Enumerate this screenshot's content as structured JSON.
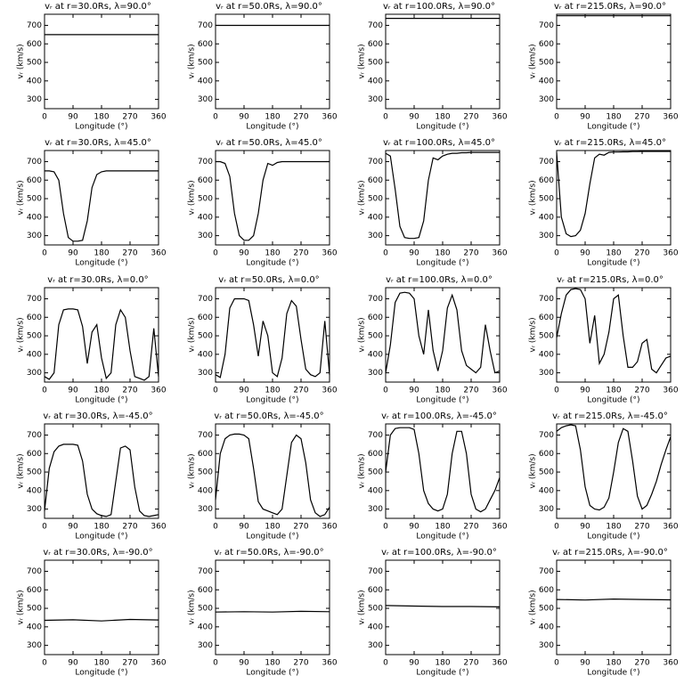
{
  "chart_data": [
    {
      "type": "line",
      "title": "vᵣ at r=30.0Rs, λ=90.0°",
      "xlabel": "Longitude (°)",
      "ylabel": "vᵣ (km/s)",
      "color": "#000000",
      "xlim": [
        0,
        360
      ],
      "ylim": [
        250,
        760
      ],
      "xticks": [
        0,
        90,
        180,
        270,
        360
      ],
      "yticks": [
        300,
        400,
        500,
        600,
        700
      ],
      "x": [
        0,
        360
      ],
      "values": [
        650,
        650
      ]
    },
    {
      "type": "line",
      "title": "vᵣ at r=50.0Rs, λ=90.0°",
      "xlabel": "Longitude (°)",
      "ylabel": "vᵣ (km/s)",
      "color": "#000000",
      "xlim": [
        0,
        360
      ],
      "ylim": [
        250,
        760
      ],
      "xticks": [
        0,
        90,
        180,
        270,
        360
      ],
      "yticks": [
        300,
        400,
        500,
        600,
        700
      ],
      "x": [
        0,
        360
      ],
      "values": [
        700,
        700
      ]
    },
    {
      "type": "line",
      "title": "vᵣ at r=100.0Rs, λ=90.0°",
      "xlabel": "Longitude (°)",
      "ylabel": "vᵣ (km/s)",
      "color": "#000000",
      "xlim": [
        0,
        360
      ],
      "ylim": [
        250,
        760
      ],
      "xticks": [
        0,
        90,
        180,
        270,
        360
      ],
      "yticks": [
        300,
        400,
        500,
        600,
        700
      ],
      "x": [
        0,
        360
      ],
      "values": [
        738,
        738
      ]
    },
    {
      "type": "line",
      "title": "vᵣ at r=215.0Rs, λ=90.0°",
      "xlabel": "Longitude (°)",
      "ylabel": "vᵣ (km/s)",
      "color": "#000000",
      "xlim": [
        0,
        360
      ],
      "ylim": [
        250,
        760
      ],
      "xticks": [
        0,
        90,
        180,
        270,
        360
      ],
      "yticks": [
        300,
        400,
        500,
        600,
        700
      ],
      "x": [
        0,
        360
      ],
      "values": [
        752,
        752
      ]
    },
    {
      "type": "line",
      "title": "vᵣ at r=30.0Rs, λ=45.0°",
      "xlabel": "Longitude (°)",
      "ylabel": "vᵣ (km/s)",
      "color": "#000000",
      "xlim": [
        0,
        360
      ],
      "ylim": [
        250,
        760
      ],
      "xticks": [
        0,
        90,
        180,
        270,
        360
      ],
      "yticks": [
        300,
        400,
        500,
        600,
        700
      ],
      "x": [
        0,
        15,
        30,
        45,
        60,
        75,
        90,
        105,
        120,
        135,
        150,
        165,
        180,
        195,
        210,
        225,
        240,
        255,
        270,
        285,
        300,
        315,
        330,
        345,
        360
      ],
      "values": [
        650,
        650,
        645,
        600,
        420,
        290,
        270,
        270,
        275,
        380,
        560,
        630,
        645,
        650,
        650,
        650,
        650,
        650,
        650,
        650,
        650,
        650,
        650,
        650,
        650
      ]
    },
    {
      "type": "line",
      "title": "vᵣ at r=50.0Rs, λ=45.0°",
      "xlabel": "Longitude (°)",
      "ylabel": "vᵣ (km/s)",
      "color": "#000000",
      "xlim": [
        0,
        360
      ],
      "ylim": [
        250,
        760
      ],
      "xticks": [
        0,
        90,
        180,
        270,
        360
      ],
      "yticks": [
        300,
        400,
        500,
        600,
        700
      ],
      "x": [
        0,
        15,
        30,
        45,
        60,
        75,
        90,
        105,
        120,
        135,
        150,
        165,
        180,
        195,
        210,
        225,
        240,
        255,
        270,
        285,
        300,
        315,
        330,
        345,
        360
      ],
      "values": [
        700,
        700,
        690,
        620,
        420,
        300,
        275,
        275,
        300,
        420,
        600,
        690,
        680,
        695,
        700,
        700,
        700,
        700,
        700,
        700,
        700,
        700,
        700,
        700,
        700
      ]
    },
    {
      "type": "line",
      "title": "vᵣ at r=100.0Rs, λ=45.0°",
      "xlabel": "Longitude (°)",
      "ylabel": "vᵣ (km/s)",
      "color": "#000000",
      "xlim": [
        0,
        360
      ],
      "ylim": [
        250,
        760
      ],
      "xticks": [
        0,
        90,
        180,
        270,
        360
      ],
      "yticks": [
        300,
        400,
        500,
        600,
        700
      ],
      "x": [
        0,
        15,
        30,
        45,
        60,
        75,
        90,
        105,
        120,
        135,
        150,
        165,
        180,
        195,
        210,
        225,
        240,
        255,
        270,
        285,
        300,
        315,
        330,
        345,
        360
      ],
      "values": [
        745,
        730,
        550,
        350,
        290,
        285,
        285,
        290,
        380,
        600,
        720,
        710,
        730,
        740,
        745,
        745,
        748,
        748,
        750,
        750,
        750,
        750,
        750,
        750,
        750
      ]
    },
    {
      "type": "line",
      "title": "vᵣ at r=215.0Rs, λ=45.0°",
      "xlabel": "Longitude (°)",
      "ylabel": "vᵣ (km/s)",
      "color": "#000000",
      "xlim": [
        0,
        360
      ],
      "ylim": [
        250,
        760
      ],
      "xticks": [
        0,
        90,
        180,
        270,
        360
      ],
      "yticks": [
        300,
        400,
        500,
        600,
        700
      ],
      "x": [
        0,
        15,
        30,
        45,
        60,
        75,
        90,
        105,
        120,
        135,
        150,
        165,
        180,
        195,
        210,
        225,
        240,
        255,
        270,
        285,
        300,
        315,
        330,
        345,
        360
      ],
      "values": [
        750,
        400,
        310,
        295,
        300,
        330,
        420,
        580,
        720,
        740,
        735,
        750,
        752,
        752,
        753,
        753,
        754,
        754,
        755,
        755,
        755,
        755,
        755,
        755,
        755
      ]
    },
    {
      "type": "line",
      "title": "vᵣ at r=30.0Rs, λ=0.0°",
      "xlabel": "Longitude (°)",
      "ylabel": "vᵣ (km/s)",
      "color": "#000000",
      "xlim": [
        0,
        360
      ],
      "ylim": [
        250,
        760
      ],
      "xticks": [
        0,
        90,
        180,
        270,
        360
      ],
      "yticks": [
        300,
        400,
        500,
        600,
        700
      ],
      "x": [
        0,
        15,
        30,
        45,
        60,
        75,
        90,
        105,
        120,
        135,
        150,
        165,
        180,
        195,
        210,
        225,
        240,
        255,
        270,
        285,
        300,
        315,
        330,
        345,
        360
      ],
      "values": [
        280,
        265,
        300,
        560,
        640,
        645,
        645,
        640,
        550,
        350,
        520,
        560,
        380,
        270,
        300,
        560,
        640,
        600,
        420,
        280,
        270,
        260,
        280,
        540,
        280
      ]
    },
    {
      "type": "line",
      "title": "vᵣ at r=50.0Rs, λ=0.0°",
      "xlabel": "Longitude (°)",
      "ylabel": "vᵣ (km/s)",
      "color": "#000000",
      "xlim": [
        0,
        360
      ],
      "ylim": [
        250,
        760
      ],
      "xticks": [
        0,
        90,
        180,
        270,
        360
      ],
      "yticks": [
        300,
        400,
        500,
        600,
        700
      ],
      "x": [
        0,
        15,
        30,
        45,
        60,
        75,
        90,
        105,
        120,
        135,
        150,
        165,
        180,
        195,
        210,
        225,
        240,
        255,
        270,
        285,
        300,
        315,
        330,
        345,
        360
      ],
      "values": [
        290,
        275,
        400,
        650,
        700,
        700,
        700,
        690,
        560,
        390,
        580,
        500,
        300,
        280,
        380,
        620,
        690,
        660,
        480,
        320,
        290,
        280,
        300,
        580,
        290
      ]
    },
    {
      "type": "line",
      "title": "vᵣ at r=100.0Rs, λ=0.0°",
      "xlabel": "Longitude (°)",
      "ylabel": "vᵣ (km/s)",
      "color": "#000000",
      "xlim": [
        0,
        360
      ],
      "ylim": [
        250,
        760
      ],
      "xticks": [
        0,
        90,
        180,
        270,
        360
      ],
      "yticks": [
        300,
        400,
        500,
        600,
        700
      ],
      "x": [
        0,
        15,
        30,
        45,
        60,
        75,
        90,
        105,
        120,
        135,
        150,
        165,
        180,
        195,
        210,
        225,
        240,
        255,
        270,
        285,
        300,
        315,
        330,
        345,
        360
      ],
      "values": [
        300,
        450,
        680,
        730,
        735,
        730,
        700,
        500,
        400,
        640,
        420,
        310,
        420,
        650,
        720,
        640,
        420,
        340,
        320,
        300,
        330,
        560,
        420,
        300,
        310
      ]
    },
    {
      "type": "line",
      "title": "vᵣ at r=215.0Rs, λ=0.0°",
      "xlabel": "Longitude (°)",
      "ylabel": "vᵣ (km/s)",
      "color": "#000000",
      "xlim": [
        0,
        360
      ],
      "ylim": [
        250,
        760
      ],
      "xticks": [
        0,
        90,
        180,
        270,
        360
      ],
      "yticks": [
        300,
        400,
        500,
        600,
        700
      ],
      "x": [
        0,
        15,
        30,
        45,
        60,
        75,
        90,
        105,
        120,
        135,
        150,
        165,
        180,
        195,
        210,
        225,
        240,
        255,
        270,
        285,
        300,
        315,
        330,
        345,
        360
      ],
      "values": [
        490,
        620,
        720,
        750,
        755,
        750,
        700,
        460,
        610,
        350,
        400,
        520,
        700,
        720,
        500,
        330,
        330,
        360,
        460,
        480,
        320,
        300,
        340,
        380,
        390
      ]
    },
    {
      "type": "line",
      "title": "vᵣ at r=30.0Rs, λ=-45.0°",
      "xlabel": "Longitude (°)",
      "ylabel": "vᵣ (km/s)",
      "color": "#000000",
      "xlim": [
        0,
        360
      ],
      "ylim": [
        250,
        760
      ],
      "xticks": [
        0,
        90,
        180,
        270,
        360
      ],
      "yticks": [
        300,
        400,
        500,
        600,
        700
      ],
      "x": [
        0,
        15,
        30,
        45,
        60,
        75,
        90,
        105,
        120,
        135,
        150,
        165,
        180,
        195,
        210,
        225,
        240,
        255,
        270,
        285,
        300,
        315,
        330,
        345,
        360
      ],
      "values": [
        290,
        520,
        610,
        640,
        650,
        650,
        650,
        645,
        560,
        380,
        300,
        275,
        265,
        260,
        270,
        450,
        630,
        640,
        620,
        420,
        290,
        265,
        260,
        265,
        270
      ]
    },
    {
      "type": "line",
      "title": "vᵣ at r=50.0Rs, λ=-45.0°",
      "xlabel": "Longitude (°)",
      "ylabel": "vᵣ (km/s)",
      "color": "#000000",
      "xlim": [
        0,
        360
      ],
      "ylim": [
        250,
        760
      ],
      "xticks": [
        0,
        90,
        180,
        270,
        360
      ],
      "yticks": [
        300,
        400,
        500,
        600,
        700
      ],
      "x": [
        0,
        15,
        30,
        45,
        60,
        75,
        90,
        105,
        120,
        135,
        150,
        165,
        180,
        195,
        210,
        225,
        240,
        255,
        270,
        285,
        300,
        315,
        330,
        345,
        360
      ],
      "values": [
        350,
        600,
        680,
        700,
        705,
        705,
        700,
        680,
        520,
        340,
        300,
        290,
        280,
        270,
        300,
        480,
        660,
        700,
        680,
        550,
        350,
        280,
        260,
        270,
        310
      ]
    },
    {
      "type": "line",
      "title": "vᵣ at r=100.0Rs, λ=-45.0°",
      "xlabel": "Longitude (°)",
      "ylabel": "vᵣ (km/s)",
      "color": "#000000",
      "xlim": [
        0,
        360
      ],
      "ylim": [
        250,
        760
      ],
      "xticks": [
        0,
        90,
        180,
        270,
        360
      ],
      "yticks": [
        300,
        400,
        500,
        600,
        700
      ],
      "x": [
        0,
        15,
        30,
        45,
        60,
        75,
        90,
        105,
        120,
        135,
        150,
        165,
        180,
        195,
        210,
        225,
        240,
        255,
        270,
        285,
        300,
        315,
        330,
        345,
        360
      ],
      "values": [
        500,
        700,
        735,
        740,
        740,
        740,
        730,
        600,
        400,
        330,
        300,
        290,
        300,
        380,
        600,
        720,
        720,
        600,
        380,
        300,
        285,
        300,
        350,
        400,
        470
      ]
    },
    {
      "type": "line",
      "title": "vᵣ at r=215.0Rs, λ=-45.0°",
      "xlabel": "Longitude (°)",
      "ylabel": "vᵣ (km/s)",
      "color": "#000000",
      "xlim": [
        0,
        360
      ],
      "ylim": [
        250,
        760
      ],
      "xticks": [
        0,
        90,
        180,
        270,
        360
      ],
      "yticks": [
        300,
        400,
        500,
        600,
        700
      ],
      "x": [
        0,
        15,
        30,
        45,
        60,
        75,
        90,
        105,
        120,
        135,
        150,
        165,
        180,
        195,
        210,
        225,
        240,
        255,
        270,
        285,
        300,
        315,
        330,
        345,
        360
      ],
      "values": [
        720,
        740,
        750,
        755,
        750,
        620,
        420,
        320,
        300,
        295,
        310,
        360,
        500,
        660,
        735,
        720,
        560,
        370,
        300,
        320,
        380,
        450,
        540,
        620,
        690
      ]
    },
    {
      "type": "line",
      "title": "vᵣ at r=30.0Rs, λ=-90.0°",
      "xlabel": "Longitude (°)",
      "ylabel": "vᵣ (km/s)",
      "color": "#000000",
      "xlim": [
        0,
        360
      ],
      "ylim": [
        250,
        760
      ],
      "xticks": [
        0,
        90,
        180,
        270,
        360
      ],
      "yticks": [
        300,
        400,
        500,
        600,
        700
      ],
      "x": [
        0,
        90,
        180,
        270,
        360
      ],
      "values": [
        435,
        438,
        432,
        440,
        437
      ]
    },
    {
      "type": "line",
      "title": "vᵣ at r=50.0Rs, λ=-90.0°",
      "xlabel": "Longitude (°)",
      "ylabel": "vᵣ (km/s)",
      "color": "#000000",
      "xlim": [
        0,
        360
      ],
      "ylim": [
        250,
        760
      ],
      "xticks": [
        0,
        90,
        180,
        270,
        360
      ],
      "yticks": [
        300,
        400,
        500,
        600,
        700
      ],
      "x": [
        0,
        90,
        180,
        270,
        360
      ],
      "values": [
        480,
        482,
        480,
        484,
        482
      ]
    },
    {
      "type": "line",
      "title": "vᵣ at r=100.0Rs, λ=-90.0°",
      "xlabel": "Longitude (°)",
      "ylabel": "vᵣ (km/s)",
      "color": "#000000",
      "xlim": [
        0,
        360
      ],
      "ylim": [
        250,
        760
      ],
      "xticks": [
        0,
        90,
        180,
        270,
        360
      ],
      "yticks": [
        300,
        400,
        500,
        600,
        700
      ],
      "x": [
        0,
        90,
        180,
        270,
        360
      ],
      "values": [
        515,
        512,
        510,
        510,
        508
      ]
    },
    {
      "type": "line",
      "title": "vᵣ at r=215.0Rs, λ=-90.0°",
      "xlabel": "Longitude (°)",
      "ylabel": "vᵣ (km/s)",
      "color": "#000000",
      "xlim": [
        0,
        360
      ],
      "ylim": [
        250,
        760
      ],
      "xticks": [
        0,
        90,
        180,
        270,
        360
      ],
      "yticks": [
        300,
        400,
        500,
        600,
        700
      ],
      "x": [
        0,
        90,
        180,
        270,
        360
      ],
      "values": [
        548,
        545,
        550,
        548,
        546
      ]
    }
  ]
}
